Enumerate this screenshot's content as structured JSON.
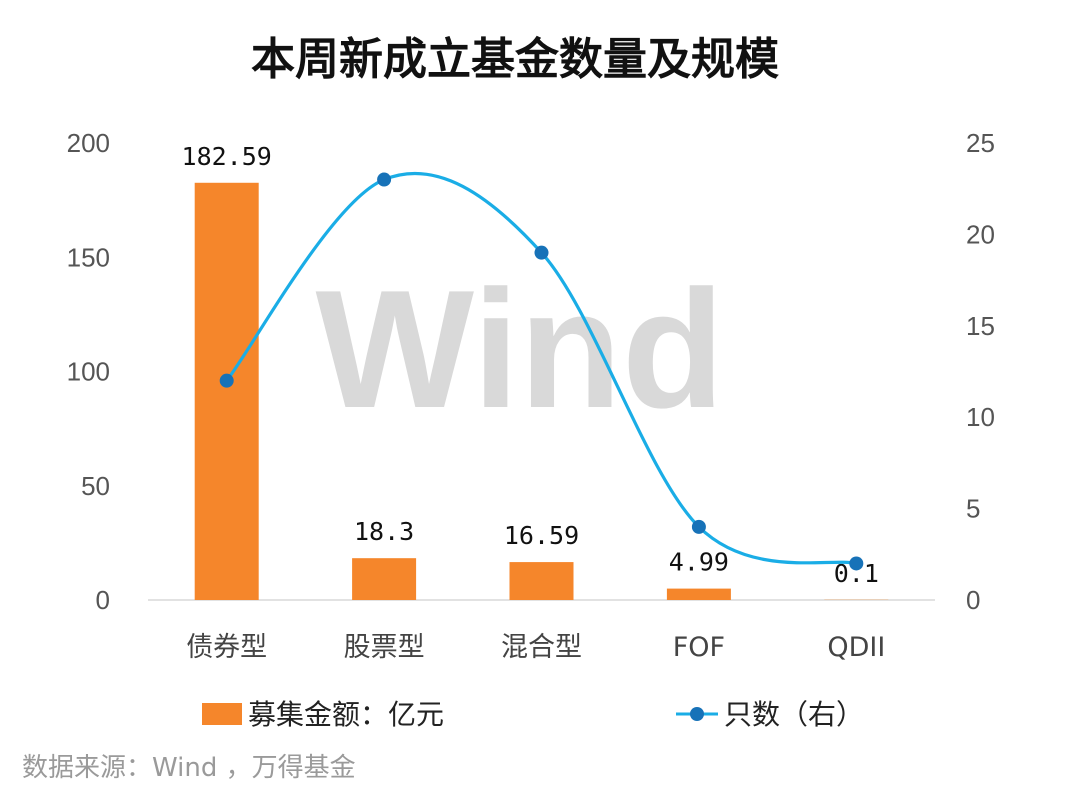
{
  "chart_data": {
    "type": "bar+line",
    "title": "本周新成立基金数量及规模",
    "categories": [
      "债券型",
      "股票型",
      "混合型",
      "FOF",
      "QDII"
    ],
    "series": [
      {
        "name": "募集金额：亿元",
        "type": "bar",
        "axis": "left",
        "values": [
          182.59,
          18.3,
          16.59,
          4.99,
          0.1
        ],
        "data_labels": [
          "182.59",
          "18.3",
          "16.59",
          "4.99",
          "0.1"
        ],
        "color": "#F5862B"
      },
      {
        "name": "只数（右）",
        "type": "line",
        "axis": "right",
        "smooth": true,
        "values": [
          12,
          23,
          19,
          4,
          2
        ],
        "color": "#1AADE6",
        "marker_color": "#1772B8"
      }
    ],
    "y_left": {
      "lim": [
        0,
        200
      ],
      "ticks": [
        "0",
        "50",
        "100",
        "150",
        "200"
      ]
    },
    "y_right": {
      "lim": [
        0,
        25
      ],
      "ticks": [
        "0",
        "5",
        "10",
        "15",
        "20",
        "25"
      ]
    },
    "grid": false,
    "legend": "bottom",
    "watermark": "Wind"
  },
  "source": "数据来源：Wind ，万得基金"
}
